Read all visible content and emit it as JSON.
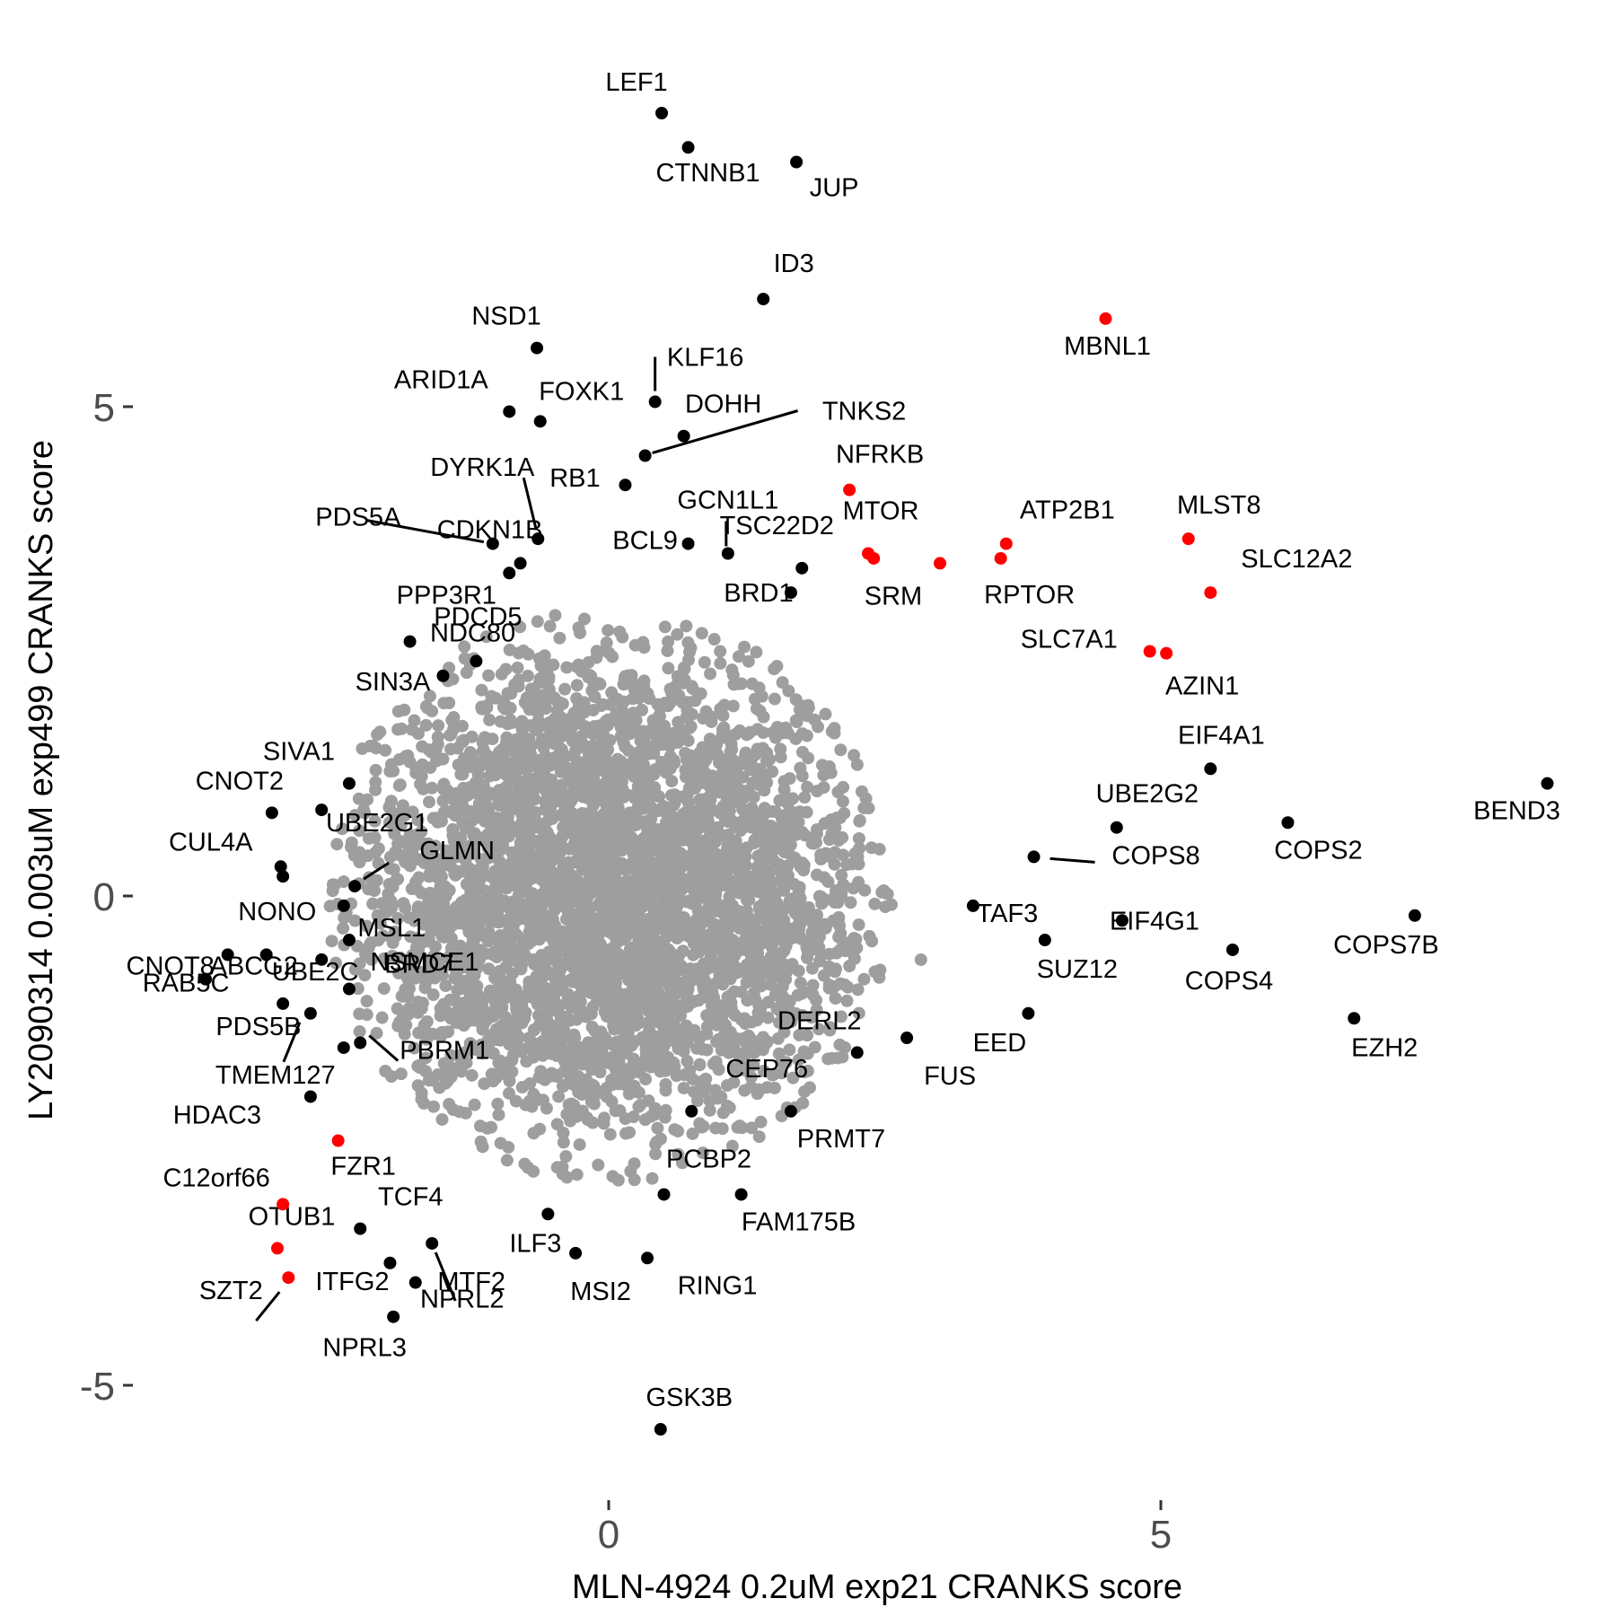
{
  "chart_data": {
    "type": "scatter",
    "xlabel": "MLN-4924 0.2uM exp21 CRANKS score",
    "ylabel": "LY2090314 0.003uM exp499 CRANKS score",
    "xlim": [
      -5.5,
      8.9
    ],
    "ylim": [
      -6.0,
      8.2
    ],
    "x_ticks": [
      {
        "value": 0,
        "label": "0"
      },
      {
        "value": 5,
        "label": "5"
      }
    ],
    "y_ticks": [
      {
        "value": -5,
        "label": "-5"
      },
      {
        "value": 0,
        "label": "0"
      },
      {
        "value": 5,
        "label": "5"
      }
    ],
    "grid": false,
    "colors": {
      "background": "#ffffff",
      "not_significant": "#9e9e9e",
      "significant": "#000000",
      "highlighted": "#ff0000"
    },
    "background_cloud": {
      "description": "Several thousand non-significant genes centred near (0, 0)",
      "color": "#9e9e9e",
      "x_sd": 1.2,
      "y_sd": 1.3
    },
    "points": [
      {
        "gene": "LEF1",
        "x": 0.48,
        "y": 8.0,
        "color": "black"
      },
      {
        "gene": "CTNNB1",
        "x": 0.72,
        "y": 7.65,
        "color": "black"
      },
      {
        "gene": "JUP",
        "x": 1.7,
        "y": 7.5,
        "color": "black"
      },
      {
        "gene": "ID3",
        "x": 1.4,
        "y": 6.1,
        "color": "black"
      },
      {
        "gene": "MBNL1",
        "x": 4.5,
        "y": 5.9,
        "color": "red"
      },
      {
        "gene": "NSD1",
        "x": -0.65,
        "y": 5.6,
        "color": "black"
      },
      {
        "gene": "KLF16",
        "x": 0.42,
        "y": 5.05,
        "color": "black"
      },
      {
        "gene": "ARID1A",
        "x": -0.9,
        "y": 4.95,
        "color": "black"
      },
      {
        "gene": "FOXK1",
        "x": -0.62,
        "y": 4.85,
        "color": "black"
      },
      {
        "gene": "DOHH",
        "x": 0.68,
        "y": 4.7,
        "color": "black"
      },
      {
        "gene": "TNKS2",
        "x": 0.33,
        "y": 4.5,
        "color": "black"
      },
      {
        "gene": "RB1",
        "x": 0.15,
        "y": 4.2,
        "color": "black"
      },
      {
        "gene": "NFRKB",
        "x": 2.18,
        "y": 4.15,
        "color": "red"
      },
      {
        "gene": "GCN1L1",
        "x": 1.08,
        "y": 3.5,
        "color": "black"
      },
      {
        "gene": "DYRK1A",
        "x": -0.64,
        "y": 3.65,
        "color": "black"
      },
      {
        "gene": "CDKN1B",
        "x": -0.8,
        "y": 3.4,
        "color": "black"
      },
      {
        "gene": "PDS5A",
        "x": -1.05,
        "y": 3.6,
        "color": "black"
      },
      {
        "gene": "PPP3R1",
        "x": -0.9,
        "y": 3.3,
        "color": "black"
      },
      {
        "gene": "BCL9",
        "x": 0.72,
        "y": 3.6,
        "color": "black"
      },
      {
        "gene": "TSC22D2",
        "x": 1.75,
        "y": 3.35,
        "color": "black"
      },
      {
        "gene": "BRD1",
        "x": 1.65,
        "y": 3.1,
        "color": "black"
      },
      {
        "gene": "MTOR",
        "x": 2.35,
        "y": 3.5,
        "color": "red"
      },
      {
        "gene": "MTOR_2",
        "x": 2.4,
        "y": 3.45,
        "color": "red"
      },
      {
        "gene": "ATP2B1",
        "x": 3.6,
        "y": 3.6,
        "color": "red"
      },
      {
        "gene": "RPTOR",
        "x": 3.55,
        "y": 3.45,
        "color": "red"
      },
      {
        "gene": "SRM",
        "x": 3.0,
        "y": 3.4,
        "color": "red"
      },
      {
        "gene": "MLST8",
        "x": 5.25,
        "y": 3.65,
        "color": "red"
      },
      {
        "gene": "SLC12A2",
        "x": 5.45,
        "y": 3.1,
        "color": "red"
      },
      {
        "gene": "SLC7A1",
        "x": 4.9,
        "y": 2.5,
        "color": "red"
      },
      {
        "gene": "AZIN1",
        "x": 5.05,
        "y": 2.48,
        "color": "red"
      },
      {
        "gene": "NDC80",
        "x": -1.8,
        "y": 2.6,
        "color": "black"
      },
      {
        "gene": "SIN3A",
        "x": -1.5,
        "y": 2.25,
        "color": "black"
      },
      {
        "gene": "PDCD5",
        "x": -1.2,
        "y": 2.4,
        "color": "black"
      },
      {
        "gene": "SIVA1",
        "x": -2.35,
        "y": 1.15,
        "color": "black"
      },
      {
        "gene": "CNOT2",
        "x": -3.05,
        "y": 0.85,
        "color": "black"
      },
      {
        "gene": "UBE2G1",
        "x": -2.6,
        "y": 0.88,
        "color": "black"
      },
      {
        "gene": "CUL4A",
        "x": -2.97,
        "y": 0.3,
        "color": "black"
      },
      {
        "gene": "CUL4A_2",
        "x": -2.95,
        "y": 0.2,
        "color": "black"
      },
      {
        "gene": "GLMN",
        "x": -2.3,
        "y": 0.1,
        "color": "black"
      },
      {
        "gene": "NONO",
        "x": -2.4,
        "y": -0.1,
        "color": "black"
      },
      {
        "gene": "NSMCE1",
        "x": -2.35,
        "y": -0.45,
        "color": "black"
      },
      {
        "gene": "CNOT8",
        "x": -3.45,
        "y": -0.6,
        "color": "black"
      },
      {
        "gene": "ABCG2",
        "x": -3.1,
        "y": -0.6,
        "color": "black"
      },
      {
        "gene": "RAB5C",
        "x": -3.65,
        "y": -0.85,
        "color": "black"
      },
      {
        "gene": "UBE2C",
        "x": -2.95,
        "y": -1.1,
        "color": "black"
      },
      {
        "gene": "BRD7",
        "x": -2.35,
        "y": -0.95,
        "color": "black"
      },
      {
        "gene": "PDS5B",
        "x": -2.7,
        "y": -1.2,
        "color": "black"
      },
      {
        "gene": "MSL1",
        "x": -2.6,
        "y": -0.65,
        "color": "black"
      },
      {
        "gene": "TMEM127",
        "x": -2.4,
        "y": -1.55,
        "color": "black"
      },
      {
        "gene": "PBRM1",
        "x": -2.25,
        "y": -1.5,
        "color": "black"
      },
      {
        "gene": "HDAC3",
        "x": -2.7,
        "y": -2.05,
        "color": "black"
      },
      {
        "gene": "FZR1",
        "x": -2.45,
        "y": -2.5,
        "color": "red"
      },
      {
        "gene": "C12orf66",
        "x": -2.95,
        "y": -3.15,
        "color": "red"
      },
      {
        "gene": "OTUB1",
        "x": -3.0,
        "y": -3.6,
        "color": "red"
      },
      {
        "gene": "SZT2",
        "x": -2.9,
        "y": -3.9,
        "color": "red"
      },
      {
        "gene": "TCF4",
        "x": -2.25,
        "y": -3.4,
        "color": "black"
      },
      {
        "gene": "ITFG2",
        "x": -1.98,
        "y": -3.75,
        "color": "black"
      },
      {
        "gene": "NPRL2",
        "x": -1.75,
        "y": -3.95,
        "color": "black"
      },
      {
        "gene": "NPRL3",
        "x": -1.95,
        "y": -4.3,
        "color": "black"
      },
      {
        "gene": "MTF2",
        "x": -1.6,
        "y": -3.55,
        "color": "black"
      },
      {
        "gene": "ILF3",
        "x": -0.55,
        "y": -3.25,
        "color": "black"
      },
      {
        "gene": "MSI2",
        "x": -0.3,
        "y": -3.65,
        "color": "black"
      },
      {
        "gene": "RING1",
        "x": 0.35,
        "y": -3.7,
        "color": "black"
      },
      {
        "gene": "GSK3B",
        "x": 0.47,
        "y": -5.45,
        "color": "black"
      },
      {
        "gene": "PCBP2",
        "x": 0.5,
        "y": -3.05,
        "color": "black"
      },
      {
        "gene": "FAM175B",
        "x": 1.2,
        "y": -3.05,
        "color": "black"
      },
      {
        "gene": "PRMT7",
        "x": 1.65,
        "y": -2.2,
        "color": "black"
      },
      {
        "gene": "CEP76",
        "x": 0.75,
        "y": -2.2,
        "color": "black"
      },
      {
        "gene": "DERL2",
        "x": 2.25,
        "y": -1.6,
        "color": "black"
      },
      {
        "gene": "FUS",
        "x": 2.7,
        "y": -1.45,
        "color": "black"
      },
      {
        "gene": "EED",
        "x": 3.8,
        "y": -1.2,
        "color": "black"
      },
      {
        "gene": "SUZ12",
        "x": 3.95,
        "y": -0.45,
        "color": "black"
      },
      {
        "gene": "TAF3",
        "x": 3.3,
        "y": -0.1,
        "color": "black"
      },
      {
        "gene": "EIF4G1",
        "x": 4.65,
        "y": -0.25,
        "color": "black"
      },
      {
        "gene": "COPS4",
        "x": 5.65,
        "y": -0.55,
        "color": "black"
      },
      {
        "gene": "COPS7B",
        "x": 7.3,
        "y": -0.2,
        "color": "black"
      },
      {
        "gene": "EZH2",
        "x": 6.75,
        "y": -1.25,
        "color": "black"
      },
      {
        "gene": "COPS8",
        "x": 3.85,
        "y": 0.4,
        "color": "black"
      },
      {
        "gene": "UBE2G2",
        "x": 4.6,
        "y": 0.7,
        "color": "black"
      },
      {
        "gene": "COPS2",
        "x": 6.15,
        "y": 0.75,
        "color": "black"
      },
      {
        "gene": "EIF4A1",
        "x": 5.45,
        "y": 1.3,
        "color": "black"
      },
      {
        "gene": "BEND3",
        "x": 8.5,
        "y": 1.15,
        "color": "black"
      }
    ]
  }
}
